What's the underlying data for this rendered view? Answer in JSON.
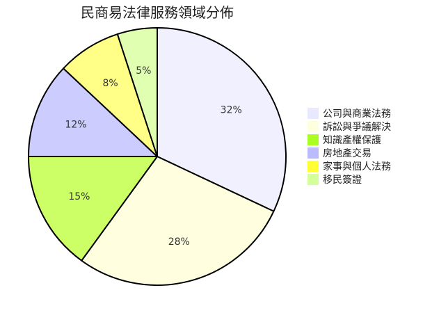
{
  "chart_data": {
    "type": "pie",
    "title": "民商易法律服務領域分佈",
    "categories": [
      "公司與商業法務",
      "訴訟與爭議解決",
      "知識產權保護",
      "房地產交易",
      "家事與個人法務",
      "移民簽證"
    ],
    "values": [
      32,
      28,
      15,
      12,
      8,
      5
    ],
    "labels": [
      "32%",
      "28%",
      "15%",
      "12%",
      "8%",
      "5%"
    ],
    "colors": [
      "#f0f0ff",
      "#ffffe0",
      "#ccff66",
      "#ccccff",
      "#ffff88",
      "#e0ffb0"
    ],
    "legend_colors": [
      "#e8e8ff",
      "#ffffe0",
      "#aaff22",
      "#bbbbff",
      "#ffff33",
      "#d4ff99"
    ],
    "legend_position": "right",
    "start_angle": "12 o'clock",
    "direction": "clockwise"
  }
}
